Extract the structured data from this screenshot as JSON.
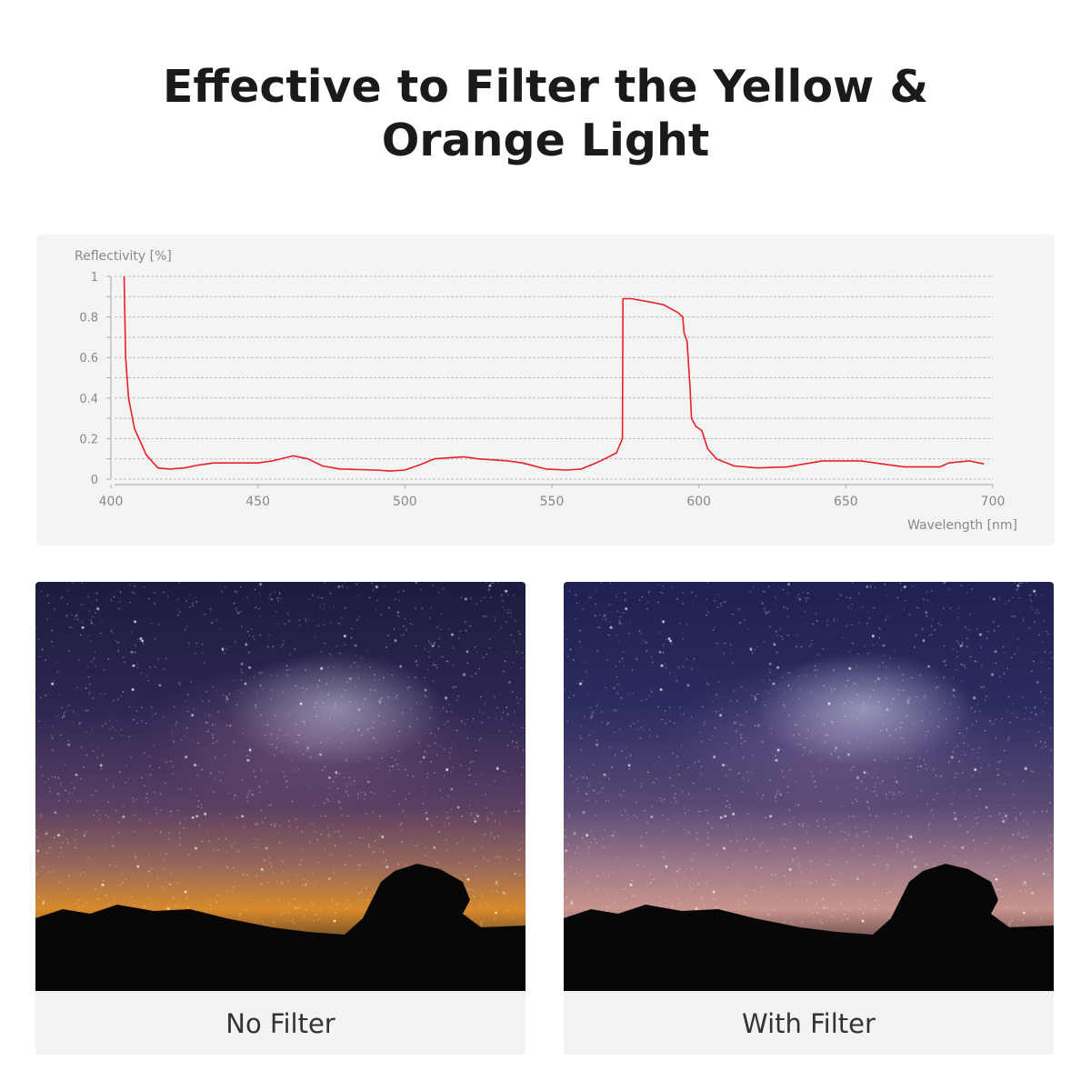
{
  "title": {
    "line1": "Effective to Filter the Yellow &",
    "line2": "Orange Light"
  },
  "chart_data": {
    "type": "line",
    "title": "",
    "xlabel": "Wavelength [nm]",
    "ylabel": "Reflectivity [%]",
    "xlim": [
      400,
      700
    ],
    "ylim": [
      0,
      1
    ],
    "x_ticks": [
      "400",
      "450",
      "500",
      "550",
      "600",
      "650",
      "700"
    ],
    "y_ticks": [
      "0",
      "0.2",
      "0.4",
      "0.6",
      "0.8",
      "1"
    ],
    "grid": "horizontal dashed, every 0.1",
    "line_color": "#e8202a",
    "series": [
      {
        "x": [
          404.5,
          405,
          406,
          408,
          412,
          416,
          420,
          425,
          430,
          435,
          440,
          450,
          455,
          462,
          467,
          472,
          478,
          490,
          495,
          500,
          505,
          510,
          515,
          520,
          525,
          530,
          535,
          540,
          548,
          555,
          560,
          565,
          568,
          572,
          574,
          574.2,
          577,
          583,
          588,
          593,
          594.5,
          595,
          596,
          597,
          597.5,
          599,
          601,
          603,
          606,
          612,
          620,
          630,
          638,
          642,
          655,
          665,
          670,
          682,
          685,
          692,
          697
        ],
        "y": [
          1.0,
          0.6,
          0.4,
          0.25,
          0.12,
          0.055,
          0.05,
          0.055,
          0.07,
          0.08,
          0.08,
          0.08,
          0.09,
          0.115,
          0.1,
          0.065,
          0.05,
          0.045,
          0.04,
          0.045,
          0.07,
          0.1,
          0.105,
          0.11,
          0.1,
          0.095,
          0.09,
          0.08,
          0.05,
          0.045,
          0.05,
          0.08,
          0.1,
          0.13,
          0.2,
          0.89,
          0.89,
          0.875,
          0.86,
          0.82,
          0.8,
          0.72,
          0.68,
          0.45,
          0.3,
          0.26,
          0.24,
          0.15,
          0.1,
          0.065,
          0.055,
          0.06,
          0.08,
          0.09,
          0.09,
          0.07,
          0.06,
          0.06,
          0.08,
          0.09,
          0.075
        ]
      }
    ]
  },
  "photos": [
    {
      "caption": "No Filter"
    },
    {
      "caption": "With Filter"
    }
  ]
}
